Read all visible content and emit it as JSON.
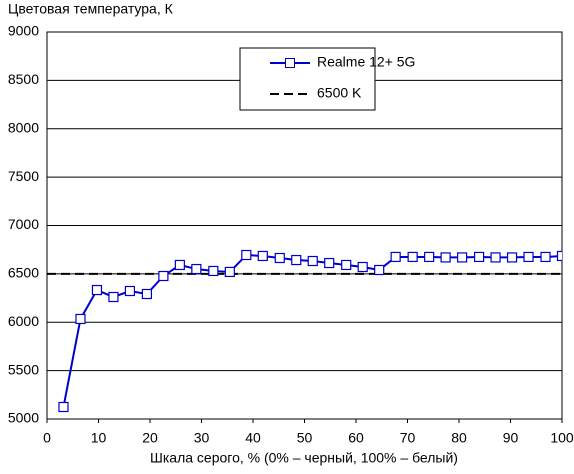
{
  "chart_data": {
    "type": "line",
    "title": "Цветовая температура, К",
    "xlabel": "Шкала серого, % (0% – черный, 100% – белый)",
    "x": [
      3.2,
      6.5,
      9.7,
      12.9,
      16.1,
      19.4,
      22.6,
      25.8,
      29,
      32.3,
      35.5,
      38.7,
      41.9,
      45.2,
      48.4,
      51.6,
      54.8,
      58.1,
      61.3,
      64.5,
      67.7,
      71,
      74.2,
      77.4,
      80.6,
      83.9,
      87.1,
      90.3,
      93.5,
      96.8,
      100
    ],
    "series": [
      {
        "name": "Realme 12+ 5G",
        "color": "#0000cc",
        "values": [
          5124,
          6034,
          6333,
          6261,
          6323,
          6292,
          6478,
          6592,
          6550,
          6530,
          6520,
          6695,
          6685,
          6664,
          6643,
          6633,
          6612,
          6592,
          6571,
          6540,
          6675,
          6675,
          6675,
          6670,
          6670,
          6675,
          6670,
          6670,
          6675,
          6675,
          6685
        ]
      }
    ],
    "reference": {
      "name": "6500 K",
      "value": 6500,
      "color": "#000000"
    },
    "xlim": [
      0,
      100
    ],
    "xticks": [
      0,
      10,
      20,
      30,
      40,
      50,
      60,
      70,
      80,
      90,
      100
    ],
    "ylim": [
      5000,
      9000
    ],
    "yticks": [
      5000,
      5500,
      6000,
      6500,
      7000,
      7500,
      8000,
      8500,
      9000
    ],
    "grid": true,
    "legend": "top-center"
  }
}
